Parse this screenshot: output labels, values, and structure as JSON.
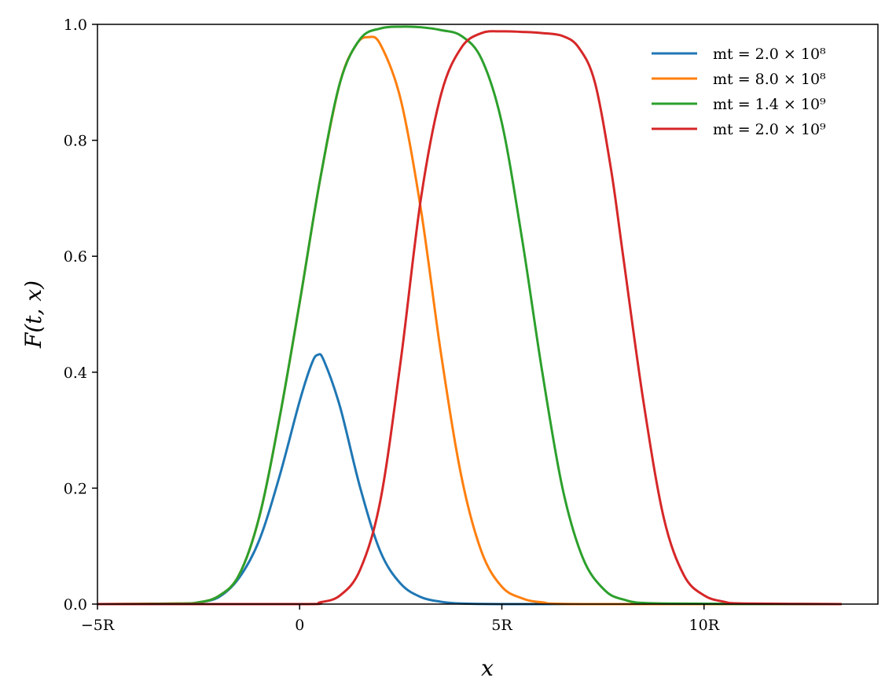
{
  "chart_data": {
    "type": "line",
    "xlabel": "x",
    "ylabel": "F(t, x)",
    "xlim": [
      -5,
      14.3
    ],
    "ylim": [
      0,
      1.0
    ],
    "x_unit": "R",
    "x_ticks": [
      {
        "value": -5,
        "label": "−5R"
      },
      {
        "value": 0,
        "label": "0"
      },
      {
        "value": 5,
        "label": "5R"
      },
      {
        "value": 10,
        "label": "10R"
      }
    ],
    "y_ticks": [
      {
        "value": 0.0,
        "label": "0.0"
      },
      {
        "value": 0.2,
        "label": "0.2"
      },
      {
        "value": 0.4,
        "label": "0.4"
      },
      {
        "value": 0.6,
        "label": "0.6"
      },
      {
        "value": 0.8,
        "label": "0.8"
      },
      {
        "value": 1.0,
        "label": "1.0"
      }
    ],
    "grid": false,
    "legend_position": "top-right",
    "series": [
      {
        "name": "mt = 2.0 × 10^8",
        "legend_label": "mt = 2.0 × 10⁸",
        "color": "#1f77b4",
        "x": [
          -5,
          -3,
          -2.5,
          -2,
          -1.5,
          -1,
          -0.5,
          0,
          0.3,
          0.45,
          0.6,
          1.0,
          1.5,
          2.0,
          2.5,
          3.0,
          3.5,
          4.0,
          5.0,
          7.0,
          13.4
        ],
        "y": [
          0.0,
          0.0,
          0.003,
          0.012,
          0.045,
          0.11,
          0.22,
          0.35,
          0.415,
          0.43,
          0.42,
          0.34,
          0.2,
          0.09,
          0.035,
          0.012,
          0.004,
          0.001,
          0.0,
          0.0,
          0.0
        ]
      },
      {
        "name": "mt = 8.0 × 10^8",
        "legend_label": "mt = 8.0 × 10⁸",
        "color": "#ff7f0e",
        "x": [
          -5,
          -3,
          -2.5,
          -2,
          -1.5,
          -1,
          -0.5,
          0,
          0.5,
          1.0,
          1.4,
          1.7,
          2.0,
          2.5,
          3.0,
          3.5,
          4.0,
          4.5,
          5.0,
          5.5,
          6.0,
          7.0,
          13.4
        ],
        "y": [
          0.0,
          0.001,
          0.003,
          0.014,
          0.05,
          0.15,
          0.32,
          0.52,
          0.73,
          0.9,
          0.965,
          0.978,
          0.965,
          0.87,
          0.68,
          0.43,
          0.22,
          0.09,
          0.03,
          0.01,
          0.003,
          0.0,
          0.0
        ]
      },
      {
        "name": "mt = 1.4 × 10^9",
        "legend_label": "mt = 1.4 × 10⁹",
        "color": "#2ca02c",
        "x": [
          -5,
          -3,
          -2.5,
          -2,
          -1.5,
          -1,
          -0.5,
          0,
          0.5,
          1.0,
          1.5,
          2.0,
          2.5,
          3.0,
          3.5,
          4.0,
          4.5,
          5.0,
          5.5,
          6.0,
          6.5,
          7.0,
          7.5,
          8.0,
          9.0,
          13.4
        ],
        "y": [
          0.0,
          0.001,
          0.003,
          0.014,
          0.05,
          0.15,
          0.32,
          0.52,
          0.73,
          0.9,
          0.975,
          0.993,
          0.996,
          0.995,
          0.99,
          0.98,
          0.94,
          0.83,
          0.63,
          0.4,
          0.2,
          0.08,
          0.027,
          0.008,
          0.001,
          0.0
        ]
      },
      {
        "name": "mt = 2.0 × 10^9",
        "legend_label": "mt = 2.0 × 10⁹",
        "color": "#d62728",
        "x": [
          -5,
          0,
          0.5,
          1.0,
          1.5,
          2.0,
          2.5,
          3.0,
          3.5,
          4.0,
          4.5,
          5.0,
          5.5,
          6.0,
          6.5,
          6.9,
          7.3,
          7.7,
          8.0,
          8.5,
          9.0,
          9.5,
          10.0,
          10.5,
          11.0,
          13.4
        ],
        "y": [
          0.0,
          0.0,
          0.003,
          0.015,
          0.06,
          0.18,
          0.42,
          0.7,
          0.88,
          0.96,
          0.985,
          0.988,
          0.987,
          0.985,
          0.98,
          0.96,
          0.9,
          0.75,
          0.6,
          0.35,
          0.15,
          0.05,
          0.015,
          0.004,
          0.001,
          0.0
        ]
      }
    ]
  }
}
